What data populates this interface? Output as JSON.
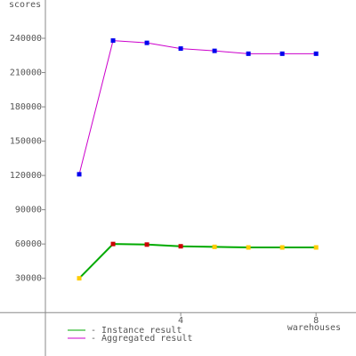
{
  "chart_data": {
    "type": "line",
    "y_label": "scores",
    "x_label": "warehouses",
    "x": [
      1,
      2,
      3,
      4,
      5,
      6,
      7,
      8
    ],
    "xlim": [
      0,
      9.18
    ],
    "xticks": [
      4,
      8
    ],
    "ylim": [
      -38000,
      273500
    ],
    "yticks": [
      30000,
      60000,
      90000,
      120000,
      150000,
      180000,
      210000,
      240000
    ],
    "series": [
      {
        "name": "- Instance result",
        "color": "#00aa00",
        "values": [
          30000,
          60000,
          59500,
          58000,
          57500,
          57000,
          57000,
          57000
        ],
        "marker_colors": [
          "#ffcc00",
          "#cc0000",
          "#cc0000",
          "#cc0000",
          "#ffcc00",
          "#ffcc00",
          "#ffcc00",
          "#ffcc00"
        ]
      },
      {
        "name": "- Aggregated result",
        "color": "#cc00cc",
        "values": [
          121000,
          238000,
          236000,
          231000,
          229000,
          226500,
          226500,
          226500
        ],
        "marker_color": "#0000ee"
      }
    ]
  }
}
